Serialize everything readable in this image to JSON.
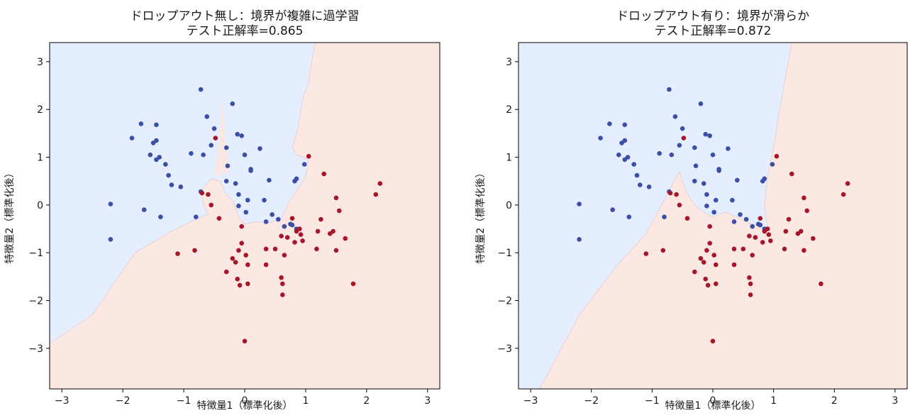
{
  "colors": {
    "region_class0": "#e5eeff",
    "region_class1": "#fce8e2",
    "point_class0": "#3c4fa6",
    "point_class1": "#a61628",
    "boundary": "#e8c8d0"
  },
  "chart_data": [
    {
      "type": "scatter",
      "title_line1": "ドロップアウト無し：境界が複雑に過学習",
      "title_line2": "テスト正解率=0.865",
      "xlabel": "特徴量1（標準化後）",
      "ylabel": "特徴量2（標準化後）",
      "xlim": [
        -3.2,
        3.2
      ],
      "ylim": [
        -3.85,
        3.4
      ],
      "xticks": [
        "−3",
        "−2",
        "−1",
        "0",
        "1",
        "2",
        "3"
      ],
      "xtick_values": [
        -3,
        -2,
        -1,
        0,
        1,
        2,
        3
      ],
      "yticks": [
        "3",
        "2",
        "1",
        "0",
        "−1",
        "−2",
        "−3"
      ],
      "ytick_values": [
        3,
        2,
        1,
        0,
        -1,
        -2,
        -3
      ],
      "region_class0_polygon": [
        [
          -3.2,
          3.4
        ],
        [
          1.15,
          3.4
        ],
        [
          1.05,
          2.6
        ],
        [
          0.95,
          2.2
        ],
        [
          0.9,
          1.8
        ],
        [
          0.85,
          1.5
        ],
        [
          0.78,
          1.2
        ],
        [
          0.85,
          1.05
        ],
        [
          1.05,
          0.95
        ],
        [
          1.0,
          0.6
        ],
        [
          0.85,
          0.3
        ],
        [
          0.7,
          0.0
        ],
        [
          0.6,
          -0.3
        ],
        [
          0.4,
          -0.38
        ],
        [
          0.2,
          -0.35
        ],
        [
          0.0,
          -0.4
        ],
        [
          -0.1,
          -0.25
        ],
        [
          -0.15,
          -0.05
        ],
        [
          -0.2,
          0.1
        ],
        [
          -0.3,
          0.2
        ],
        [
          -0.4,
          0.5
        ],
        [
          -0.55,
          0.55
        ],
        [
          -0.72,
          0.3
        ],
        [
          -0.68,
          0.0
        ],
        [
          -0.6,
          -0.2
        ],
        [
          -0.8,
          -0.3
        ],
        [
          -1.2,
          -0.55
        ],
        [
          -1.8,
          -1.0
        ],
        [
          -2.5,
          -2.3
        ],
        [
          -3.2,
          -2.9
        ]
      ],
      "region_class1_spike": [
        [
          -0.5,
          0.6
        ],
        [
          -0.45,
          1.0
        ],
        [
          -0.4,
          1.6
        ],
        [
          -0.38,
          2.2
        ],
        [
          -0.34,
          1.8
        ],
        [
          -0.3,
          1.2
        ],
        [
          -0.26,
          0.7
        ]
      ]
    },
    {
      "type": "scatter",
      "title_line1": "ドロップアウト有り：境界が滑らか",
      "title_line2": "テスト正解率=0.872",
      "xlabel": "特徴量1（標準化後）",
      "ylabel": "特徴量2（標準化後）",
      "xlim": [
        -3.2,
        3.2
      ],
      "ylim": [
        -3.85,
        3.4
      ],
      "xticks": [
        "−3",
        "−2",
        "−1",
        "0",
        "1",
        "2",
        "3"
      ],
      "xtick_values": [
        -3,
        -2,
        -1,
        0,
        1,
        2,
        3
      ],
      "yticks": [
        "3",
        "2",
        "1",
        "0",
        "−1",
        "−2",
        "−3"
      ],
      "ytick_values": [
        3,
        2,
        1,
        0,
        -1,
        -2,
        -3
      ],
      "region_class0_polygon": [
        [
          -3.2,
          3.4
        ],
        [
          1.3,
          3.4
        ],
        [
          1.1,
          2.0
        ],
        [
          1.0,
          1.2
        ],
        [
          0.93,
          0.8
        ],
        [
          0.88,
          0.4
        ],
        [
          0.85,
          0.0
        ],
        [
          0.9,
          -0.5
        ],
        [
          0.6,
          -0.38
        ],
        [
          0.4,
          -0.25
        ],
        [
          0.2,
          -0.15
        ],
        [
          0.0,
          -0.25
        ],
        [
          -0.15,
          -0.15
        ],
        [
          -0.3,
          0.0
        ],
        [
          -0.45,
          0.3
        ],
        [
          -0.55,
          0.7
        ],
        [
          -0.8,
          0.1
        ],
        [
          -1.1,
          -0.6
        ],
        [
          -1.6,
          -1.3
        ],
        [
          -2.2,
          -2.3
        ],
        [
          -2.85,
          -3.85
        ],
        [
          -3.2,
          -3.85
        ]
      ],
      "region_class1_spike": []
    }
  ],
  "points_class0": [
    [
      -2.2,
      0.02
    ],
    [
      -2.2,
      -0.72
    ],
    [
      -1.85,
      1.4
    ],
    [
      -1.7,
      1.7
    ],
    [
      -1.65,
      -0.1
    ],
    [
      -1.55,
      1.05
    ],
    [
      -1.5,
      1.3
    ],
    [
      -1.45,
      0.95
    ],
    [
      -1.45,
      1.35
    ],
    [
      -1.4,
      1.0
    ],
    [
      -1.45,
      1.68
    ],
    [
      -1.38,
      -0.25
    ],
    [
      -1.3,
      0.85
    ],
    [
      -1.25,
      0.62
    ],
    [
      -1.2,
      0.42
    ],
    [
      -1.05,
      0.38
    ],
    [
      -0.88,
      1.08
    ],
    [
      -0.8,
      -0.25
    ],
    [
      -0.72,
      2.42
    ],
    [
      -0.68,
      1.05
    ],
    [
      -0.62,
      1.85
    ],
    [
      -0.55,
      1.25
    ],
    [
      -0.5,
      1.6
    ],
    [
      -0.3,
      1.2
    ],
    [
      -0.28,
      0.82
    ],
    [
      -0.3,
      0.5
    ],
    [
      -0.2,
      2.12
    ],
    [
      -0.15,
      0.45
    ],
    [
      -0.12,
      1.48
    ],
    [
      -0.1,
      0.22
    ],
    [
      -0.05,
      1.45
    ],
    [
      -0.1,
      -0.02
    ],
    [
      0.05,
      0.1
    ],
    [
      0.0,
      1.05
    ],
    [
      0.1,
      0.72
    ],
    [
      0.1,
      0.75
    ],
    [
      0.25,
      1.18
    ],
    [
      0.32,
      0.1
    ],
    [
      0.4,
      0.52
    ],
    [
      0.35,
      -0.35
    ],
    [
      0.45,
      -0.2
    ],
    [
      0.55,
      -0.3
    ],
    [
      0.65,
      -0.45
    ],
    [
      0.75,
      -0.4
    ],
    [
      0.78,
      -0.42
    ],
    [
      0.85,
      -0.5
    ],
    [
      0.82,
      0.5
    ],
    [
      0.85,
      0.55
    ],
    [
      0.98,
      0.85
    ],
    [
      0.02,
      -0.15
    ],
    [
      -0.72,
      0.28
    ]
  ],
  "points_class1": [
    [
      -0.48,
      1.4
    ],
    [
      1.05,
      1.02
    ],
    [
      1.3,
      0.65
    ],
    [
      2.22,
      0.45
    ],
    [
      2.15,
      0.22
    ],
    [
      1.5,
      0.15
    ],
    [
      1.55,
      -0.12
    ],
    [
      1.2,
      -0.55
    ],
    [
      1.4,
      -0.6
    ],
    [
      1.45,
      -0.55
    ],
    [
      1.25,
      -0.3
    ],
    [
      1.65,
      -0.7
    ],
    [
      1.5,
      -0.95
    ],
    [
      1.18,
      -0.92
    ],
    [
      1.78,
      -1.65
    ],
    [
      0.78,
      -0.28
    ],
    [
      0.85,
      -0.55
    ],
    [
      0.92,
      -0.62
    ],
    [
      0.95,
      -0.75
    ],
    [
      0.9,
      -0.5
    ],
    [
      0.6,
      -0.65
    ],
    [
      0.7,
      -0.68
    ],
    [
      0.82,
      -0.78
    ],
    [
      -0.7,
      0.25
    ],
    [
      -0.6,
      0.22
    ],
    [
      -0.55,
      0.0
    ],
    [
      -0.42,
      -0.28
    ],
    [
      -0.3,
      -1.4
    ],
    [
      -0.2,
      -1.12
    ],
    [
      -0.15,
      -1.2
    ],
    [
      -0.12,
      -1.55
    ],
    [
      -0.05,
      -0.45
    ],
    [
      -0.05,
      -0.8
    ],
    [
      -0.1,
      -0.95
    ],
    [
      -0.08,
      -1.68
    ],
    [
      0.05,
      -1.25
    ],
    [
      0.02,
      -1.05
    ],
    [
      0.05,
      -1.65
    ],
    [
      0.0,
      -2.85
    ],
    [
      0.35,
      -0.92
    ],
    [
      0.35,
      -1.25
    ],
    [
      0.5,
      -0.92
    ],
    [
      0.6,
      -1.52
    ],
    [
      0.62,
      -1.65
    ],
    [
      0.62,
      -1.88
    ],
    [
      0.65,
      -1.05
    ],
    [
      -0.82,
      -0.95
    ],
    [
      -1.1,
      -1.02
    ]
  ],
  "legend": "none",
  "grid": false
}
